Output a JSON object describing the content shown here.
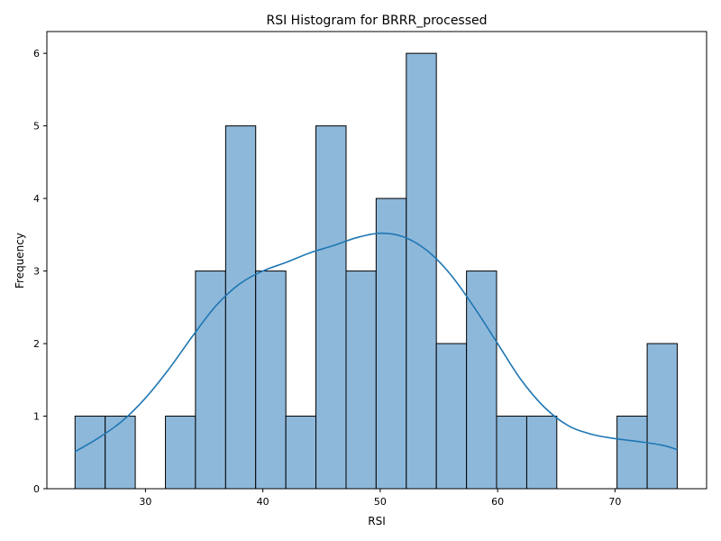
{
  "chart_data": {
    "type": "bar",
    "title": "RSI Histogram for BRRR_processed",
    "xlabel": "RSI",
    "ylabel": "Frequency",
    "xlim": [
      21.6,
      77.8
    ],
    "ylim": [
      0,
      6.3
    ],
    "x_ticks": [
      30,
      40,
      50,
      60,
      70
    ],
    "y_ticks": [
      0,
      1,
      2,
      3,
      4,
      5,
      6
    ],
    "bin_edges": [
      24.0,
      26.57,
      29.13,
      31.7,
      34.26,
      36.83,
      39.39,
      41.96,
      44.52,
      47.09,
      49.65,
      52.22,
      54.78,
      57.35,
      59.91,
      62.48,
      65.04,
      67.61,
      70.17,
      72.74,
      75.3
    ],
    "counts": [
      1,
      1,
      0,
      1,
      3,
      5,
      3,
      1,
      5,
      3,
      4,
      6,
      2,
      3,
      1,
      1,
      0,
      0,
      1,
      2
    ],
    "kde": {
      "x": [
        24.0,
        26.0,
        28.0,
        30.0,
        32.0,
        34.0,
        36.0,
        38.0,
        40.0,
        42.0,
        44.0,
        46.0,
        48.0,
        50.0,
        52.0,
        54.0,
        56.0,
        58.0,
        60.0,
        62.0,
        64.0,
        66.0,
        68.0,
        70.0,
        72.0,
        74.0,
        75.3
      ],
      "y": [
        0.51,
        0.7,
        0.93,
        1.25,
        1.65,
        2.1,
        2.52,
        2.82,
        3.0,
        3.12,
        3.25,
        3.35,
        3.46,
        3.52,
        3.47,
        3.28,
        2.95,
        2.5,
        2.0,
        1.5,
        1.12,
        0.87,
        0.75,
        0.69,
        0.65,
        0.6,
        0.54
      ]
    },
    "grid": false,
    "colors": {
      "bar_fill": "#8eb8da",
      "bar_edge": "#000000",
      "kde_line": "#1f77b4"
    }
  }
}
